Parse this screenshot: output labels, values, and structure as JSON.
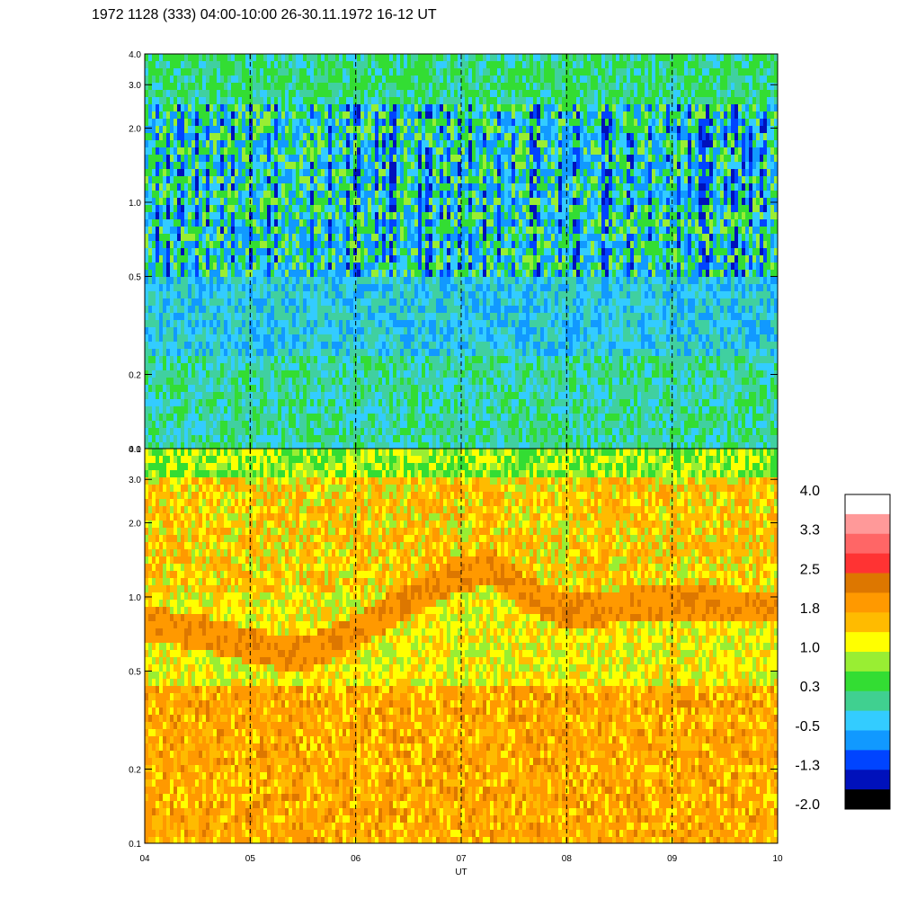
{
  "title": "1972 1128 (333) 04:00-10:00 26-30.11.1972  16-12 UT",
  "chart_data": [
    {
      "type": "heatmap",
      "panel": "top",
      "x_ticks": [
        "04",
        "05",
        "06",
        "07",
        "08",
        "09",
        "10"
      ],
      "x_range": [
        4,
        10
      ],
      "y_scale": "log",
      "y_range": [
        0.1,
        4.0
      ],
      "y_ticks": [
        {
          "value": 4.0,
          "label": "4.0"
        },
        {
          "value": 3.0,
          "label": "3.0"
        },
        {
          "value": 2.0,
          "label": "2.0"
        },
        {
          "value": 1.0,
          "label": "1.0"
        },
        {
          "value": 0.5,
          "label": "0.5"
        },
        {
          "value": 0.2,
          "label": "0.2"
        },
        {
          "value": 0.1,
          "label": "0.1"
        }
      ],
      "dashed_gridlines_x": [
        5,
        6,
        7,
        8,
        9
      ],
      "dominant_colors": [
        "#40e0d0",
        "#33ccff",
        "#3399ff",
        "#0040ff",
        "#33dd33",
        "#99ee33"
      ]
    },
    {
      "type": "heatmap",
      "panel": "bottom",
      "x_ticks": [
        "04",
        "05",
        "06",
        "07",
        "08",
        "09",
        "10"
      ],
      "x_range": [
        4,
        10
      ],
      "xlabel": "UT",
      "y_scale": "log",
      "y_range": [
        0.1,
        4.0
      ],
      "y_ticks": [
        {
          "value": 4.0,
          "label": "4.0"
        },
        {
          "value": 3.0,
          "label": "3.0"
        },
        {
          "value": 2.0,
          "label": "2.0"
        },
        {
          "value": 1.0,
          "label": "1.0"
        },
        {
          "value": 0.5,
          "label": "0.5"
        },
        {
          "value": 0.2,
          "label": "0.2"
        },
        {
          "value": 0.1,
          "label": "0.1"
        }
      ],
      "dashed_gridlines_x": [
        5,
        6,
        7,
        8,
        9
      ],
      "dominant_colors": [
        "#ffbb00",
        "#ff9900",
        "#ffff00",
        "#99ee33",
        "#33dd33",
        "#dd7700"
      ],
      "band_ridge_x": [
        4.0,
        4.5,
        5.0,
        5.5,
        6.0,
        6.5,
        7.0,
        7.3,
        7.6,
        8.0,
        8.5,
        9.0,
        9.5,
        10.0
      ],
      "band_ridge_y": [
        0.8,
        0.75,
        0.65,
        0.6,
        0.75,
        1.0,
        1.3,
        1.35,
        1.05,
        0.9,
        0.95,
        1.0,
        0.95,
        0.95
      ]
    }
  ],
  "colorbar": {
    "labels": [
      "4.0",
      "3.3",
      "2.5",
      "1.8",
      "1.0",
      "0.3",
      "-0.5",
      "-1.3",
      "-2.0"
    ],
    "colors": [
      "#ffffff",
      "#ff9999",
      "#ff6666",
      "#ff3333",
      "#dd7700",
      "#ff9900",
      "#ffbb00",
      "#ffff00",
      "#99ee33",
      "#33dd33",
      "#40d090",
      "#33ccff",
      "#1199ff",
      "#0044ff",
      "#0011bb",
      "#000000"
    ]
  }
}
